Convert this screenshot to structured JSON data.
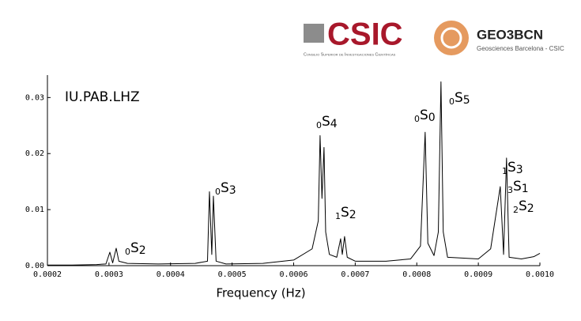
{
  "header": {
    "csic": "CSIC",
    "csic_full": "Consejo Superior de Investigaciones Científicas",
    "geo": "GEO3BCN",
    "geo_full": "Geosciences Barcelona - CSIC"
  },
  "chart_data": {
    "type": "line",
    "title": "IU.PAB.LHZ",
    "x_label": "Frequency (Hz)",
    "color": "#000000",
    "x": [
      0.0002,
      0.00024,
      0.00028,
      0.000295,
      0.0003014,
      0.000306,
      0.0003117,
      0.000316,
      0.00033,
      0.00038,
      0.00044,
      0.00046,
      0.0004632,
      0.000467,
      0.0004696,
      0.000474,
      0.00049,
      0.00055,
      0.0006,
      0.00063,
      0.00064,
      0.0006429,
      0.000646,
      0.0006493,
      0.000652,
      0.000658,
      0.00067,
      0.0006763,
      0.000679,
      0.0006827,
      0.000687,
      0.0007,
      0.00075,
      0.00079,
      0.000806,
      0.0008136,
      0.000818,
      0.000828,
      0.000835,
      0.0008393,
      0.000843,
      0.00085,
      0.0009,
      0.00092,
      0.0009356,
      0.000941,
      0.0009458,
      0.00095,
      0.00097,
      0.00099,
      0.001
    ],
    "values": [
      0.0001,
      0.0001,
      0.0002,
      0.0003,
      0.0024,
      0.0005,
      0.0031,
      0.0008,
      0.0004,
      0.0003,
      0.0004,
      0.0008,
      0.0132,
      0.002,
      0.0124,
      0.0008,
      0.0003,
      0.0004,
      0.001,
      0.003,
      0.008,
      0.0232,
      0.012,
      0.0211,
      0.006,
      0.002,
      0.0015,
      0.0048,
      0.002,
      0.0052,
      0.0015,
      0.0008,
      0.0008,
      0.0012,
      0.0035,
      0.0238,
      0.004,
      0.0018,
      0.006,
      0.0328,
      0.006,
      0.0015,
      0.0012,
      0.003,
      0.0141,
      0.002,
      0.0192,
      0.0015,
      0.0012,
      0.0016,
      0.0022
    ],
    "xlim": [
      0.0002,
      0.001
    ],
    "ylim": [
      0,
      0.034
    ],
    "xticks": [
      0.0002,
      0.0003,
      0.0004,
      0.0005,
      0.0006,
      0.0007,
      0.0008,
      0.0009,
      {
        "value": 0.001,
        "label": "0.0010"
      }
    ],
    "yticks": [
      {
        "value": 0,
        "label": "0.00"
      },
      {
        "value": 0.01,
        "label": "0.01"
      },
      {
        "value": 0.02,
        "label": "0.02"
      },
      {
        "value": 0.03,
        "label": "0.03"
      }
    ],
    "annotations": [
      {
        "pre": "0",
        "name": "S",
        "sub": "2"
      },
      {
        "pre": "0",
        "name": "S",
        "sub": "3"
      },
      {
        "pre": "0",
        "name": "S",
        "sub": "4"
      },
      {
        "pre": "1",
        "name": "S",
        "sub": "2"
      },
      {
        "pre": "0",
        "name": "S",
        "sub": "0"
      },
      {
        "pre": "0",
        "name": "S",
        "sub": "5"
      },
      {
        "pre": "1",
        "name": "S",
        "sub": "3"
      },
      {
        "pre": "3",
        "name": "S",
        "sub": "1"
      },
      {
        "pre": "2",
        "name": "S",
        "sub": "2"
      }
    ]
  }
}
